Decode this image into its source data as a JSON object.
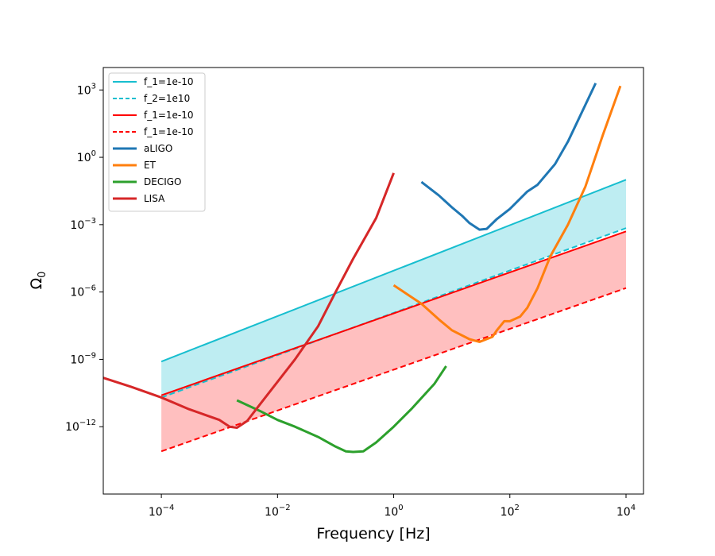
{
  "chart_data": {
    "type": "line",
    "xscale": "log",
    "yscale": "log",
    "xlabel": "Frequency [Hz]",
    "ylabel": "Ω",
    "ylabel_subscript": "0",
    "xlim": [
      1e-05,
      20000
    ],
    "ylim": [
      1e-15,
      10000
    ],
    "x_ticks": [
      {
        "value": 0.0001,
        "base": "10",
        "exp": "−4"
      },
      {
        "value": 0.01,
        "base": "10",
        "exp": "−2"
      },
      {
        "value": 1,
        "base": "10",
        "exp": "0"
      },
      {
        "value": 100,
        "base": "10",
        "exp": "2"
      },
      {
        "value": 10000,
        "base": "10",
        "exp": "4"
      }
    ],
    "y_ticks": [
      {
        "value": 1e-12,
        "base": "10",
        "exp": "−12"
      },
      {
        "value": 1e-09,
        "base": "10",
        "exp": "−9"
      },
      {
        "value": 1e-06,
        "base": "10",
        "exp": "−6"
      },
      {
        "value": 0.001,
        "base": "10",
        "exp": "−3"
      },
      {
        "value": 1,
        "base": "10",
        "exp": "0"
      },
      {
        "value": 1000,
        "base": "10",
        "exp": "3"
      }
    ],
    "bands": [
      {
        "name": "cyan-band",
        "color": "#17becf",
        "opacity": 0.28,
        "upper": [
          [
            0.0001,
            8e-10
          ],
          [
            10000,
            0.1
          ]
        ],
        "lower": [
          [
            0.0001,
            2e-11
          ],
          [
            10000,
            0.0007
          ]
        ]
      },
      {
        "name": "red-band",
        "color": "#ff0000",
        "opacity": 0.25,
        "upper": [
          [
            0.0001,
            2.5e-11
          ],
          [
            10000,
            0.0005
          ]
        ],
        "lower": [
          [
            0.0001,
            8e-14
          ],
          [
            10000,
            1.5e-06
          ]
        ]
      }
    ],
    "series": [
      {
        "name": "f_1=1e-10",
        "color": "#17becf",
        "width": 2,
        "dash": "",
        "points": [
          [
            0.0001,
            8e-10
          ],
          [
            10000,
            0.1
          ]
        ]
      },
      {
        "name": "f_2=1e10",
        "color": "#17becf",
        "width": 2,
        "dash": "7,4",
        "points": [
          [
            0.0001,
            2e-11
          ],
          [
            10000,
            0.0007
          ]
        ]
      },
      {
        "name": "f_1=1e-10",
        "color": "#ff0000",
        "width": 2,
        "dash": "",
        "points": [
          [
            0.0001,
            2.5e-11
          ],
          [
            10000,
            0.0005
          ]
        ]
      },
      {
        "name": "f_1=1e-10",
        "color": "#ff0000",
        "width": 2,
        "dash": "7,4",
        "points": [
          [
            0.0001,
            8e-14
          ],
          [
            10000,
            1.5e-06
          ]
        ]
      },
      {
        "name": "aLIGO",
        "color": "#1f77b4",
        "width": 3,
        "dash": "",
        "points": [
          [
            3,
            0.08
          ],
          [
            6,
            0.02
          ],
          [
            10,
            0.006
          ],
          [
            15,
            0.0025
          ],
          [
            20,
            0.0012
          ],
          [
            30,
            0.0006
          ],
          [
            40,
            0.00065
          ],
          [
            60,
            0.0018
          ],
          [
            100,
            0.005
          ],
          [
            200,
            0.03
          ],
          [
            300,
            0.06
          ],
          [
            600,
            0.5
          ],
          [
            1000,
            5
          ],
          [
            3000,
            2000
          ]
        ]
      },
      {
        "name": "ET",
        "color": "#ff7f0e",
        "width": 3,
        "dash": "",
        "points": [
          [
            1,
            2e-06
          ],
          [
            3,
            3e-07
          ],
          [
            6,
            6e-08
          ],
          [
            10,
            2e-08
          ],
          [
            20,
            8e-09
          ],
          [
            30,
            6e-09
          ],
          [
            50,
            1e-08
          ],
          [
            60,
            2e-08
          ],
          [
            80,
            5e-08
          ],
          [
            100,
            5e-08
          ],
          [
            150,
            8e-08
          ],
          [
            200,
            2e-07
          ],
          [
            300,
            1.5e-06
          ],
          [
            500,
            4e-05
          ],
          [
            1000,
            0.001
          ],
          [
            2000,
            0.05
          ],
          [
            4000,
            10
          ],
          [
            8000,
            1500
          ]
        ]
      },
      {
        "name": "DECIGO",
        "color": "#2ca02c",
        "width": 3,
        "dash": "",
        "points": [
          [
            0.002,
            1.5e-11
          ],
          [
            0.005,
            5e-12
          ],
          [
            0.01,
            2e-12
          ],
          [
            0.02,
            1e-12
          ],
          [
            0.05,
            3.5e-13
          ],
          [
            0.1,
            1.3e-13
          ],
          [
            0.15,
            8e-14
          ],
          [
            0.2,
            7.5e-14
          ],
          [
            0.3,
            8e-14
          ],
          [
            0.5,
            2e-13
          ],
          [
            1,
            1e-12
          ],
          [
            2,
            6e-12
          ],
          [
            5,
            8e-11
          ],
          [
            8,
            5e-10
          ]
        ]
      },
      {
        "name": "LISA",
        "color": "#d62728",
        "width": 3,
        "dash": "",
        "points": [
          [
            1e-05,
            1.5e-10
          ],
          [
            3e-05,
            6e-11
          ],
          [
            0.0001,
            2e-11
          ],
          [
            0.0003,
            6e-12
          ],
          [
            0.001,
            2e-12
          ],
          [
            0.0015,
            1e-12
          ],
          [
            0.002,
            9e-13
          ],
          [
            0.003,
            1.8e-12
          ],
          [
            0.005,
            1e-11
          ],
          [
            0.01,
            1e-10
          ],
          [
            0.02,
            1e-09
          ],
          [
            0.05,
            3e-08
          ],
          [
            0.1,
            1e-06
          ],
          [
            0.2,
            3e-05
          ],
          [
            0.5,
            0.002
          ],
          [
            1,
            0.2
          ]
        ]
      }
    ],
    "legend": {
      "placement": "top-left",
      "entries": [
        {
          "label": "f_1=1e-10",
          "color": "#17becf",
          "dash": "",
          "width": 2
        },
        {
          "label": "f_2=1e10",
          "color": "#17becf",
          "dash": "5,3",
          "width": 2
        },
        {
          "label": "f_1=1e-10",
          "color": "#ff0000",
          "dash": "",
          "width": 2
        },
        {
          "label": "f_1=1e-10",
          "color": "#ff0000",
          "dash": "5,3",
          "width": 2
        },
        {
          "label": "aLIGO",
          "color": "#1f77b4",
          "dash": "",
          "width": 3
        },
        {
          "label": "ET",
          "color": "#ff7f0e",
          "dash": "",
          "width": 3
        },
        {
          "label": "DECIGO",
          "color": "#2ca02c",
          "dash": "",
          "width": 3
        },
        {
          "label": "LISA",
          "color": "#d62728",
          "dash": "",
          "width": 3
        }
      ]
    }
  }
}
